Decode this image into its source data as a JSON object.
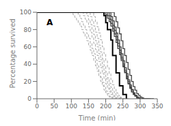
{
  "chart_data": {
    "type": "line",
    "title": "A",
    "xlabel": "Time (min)",
    "ylabel": "Percentage survived",
    "xlim": [
      0,
      350
    ],
    "ylim": [
      0,
      100
    ],
    "xticks": [
      0,
      50,
      100,
      150,
      200,
      250,
      300,
      350
    ],
    "yticks": [
      0,
      20,
      40,
      60,
      80,
      100
    ],
    "series": [
      {
        "type": "step",
        "line_style": "dashed",
        "color": "#aaaaaa",
        "x": [
          0,
          100,
          105,
          110,
          115,
          120,
          125,
          130,
          135,
          140,
          145,
          150,
          155,
          160,
          165,
          170,
          175,
          180,
          185,
          190,
          195,
          200,
          205,
          210,
          215,
          220,
          225,
          230,
          235,
          240
        ],
        "values": [
          100,
          100,
          97,
          94,
          91,
          88,
          84,
          80,
          76,
          72,
          67,
          62,
          56,
          50,
          44,
          38,
          32,
          26,
          20,
          15,
          10,
          7,
          4,
          2,
          1,
          0,
          0,
          0,
          0,
          0
        ]
      },
      {
        "type": "step",
        "line_style": "dashed",
        "color": "#aaaaaa",
        "x": [
          0,
          115,
          120,
          125,
          130,
          135,
          140,
          145,
          150,
          155,
          160,
          165,
          170,
          175,
          180,
          185,
          190,
          195,
          200,
          205,
          210,
          215,
          220,
          225,
          230,
          235,
          240,
          245
        ],
        "values": [
          100,
          100,
          97,
          93,
          89,
          85,
          80,
          75,
          70,
          64,
          58,
          52,
          45,
          38,
          31,
          25,
          19,
          14,
          9,
          6,
          3,
          2,
          1,
          0,
          0,
          0,
          0,
          0
        ]
      },
      {
        "type": "step",
        "line_style": "dashed",
        "color": "#aaaaaa",
        "x": [
          0,
          130,
          135,
          140,
          145,
          150,
          155,
          160,
          165,
          170,
          175,
          180,
          185,
          190,
          195,
          200,
          205,
          210,
          215,
          220,
          225,
          230,
          235,
          240,
          245,
          250,
          255
        ],
        "values": [
          100,
          100,
          96,
          92,
          88,
          83,
          77,
          71,
          64,
          57,
          50,
          43,
          36,
          29,
          23,
          17,
          12,
          8,
          5,
          3,
          1,
          0,
          0,
          0,
          0,
          0,
          0
        ]
      },
      {
        "type": "step",
        "line_style": "dashed",
        "color": "#aaaaaa",
        "x": [
          0,
          140,
          145,
          150,
          155,
          160,
          165,
          170,
          175,
          180,
          185,
          190,
          195,
          200,
          205,
          210,
          215,
          220,
          225,
          230,
          235,
          240,
          245,
          250,
          255,
          260
        ],
        "values": [
          100,
          100,
          96,
          91,
          86,
          80,
          74,
          67,
          60,
          52,
          45,
          37,
          30,
          23,
          17,
          12,
          8,
          5,
          3,
          1,
          0,
          0,
          0,
          0,
          0,
          0
        ]
      },
      {
        "type": "step",
        "line_style": "dashed",
        "color": "#aaaaaa",
        "x": [
          0,
          150,
          155,
          160,
          165,
          170,
          175,
          180,
          185,
          190,
          195,
          200,
          205,
          210,
          215,
          220,
          225,
          230,
          235,
          240,
          245,
          250,
          255,
          260,
          265
        ],
        "values": [
          100,
          100,
          95,
          90,
          84,
          77,
          70,
          62,
          54,
          46,
          38,
          31,
          24,
          18,
          13,
          9,
          6,
          3,
          2,
          1,
          0,
          0,
          0,
          0,
          0
        ]
      },
      {
        "type": "step",
        "line_style": "dashed",
        "color": "#aaaaaa",
        "x": [
          0,
          160,
          165,
          170,
          175,
          180,
          185,
          190,
          195,
          200,
          205,
          210,
          215,
          220,
          225,
          230,
          235,
          240,
          245,
          250,
          255,
          260,
          265,
          270
        ],
        "values": [
          100,
          100,
          95,
          89,
          83,
          76,
          68,
          60,
          52,
          44,
          36,
          29,
          22,
          16,
          11,
          7,
          4,
          2,
          1,
          0,
          0,
          0,
          0,
          0
        ]
      },
      {
        "type": "step",
        "line_style": "solid",
        "color": "#444444",
        "x": [
          0,
          195,
          200,
          205,
          210,
          215,
          220,
          225,
          230,
          235,
          240,
          245,
          250,
          255,
          260,
          265,
          270,
          275,
          280,
          285,
          290,
          295,
          300,
          305,
          310,
          315,
          320
        ],
        "values": [
          100,
          100,
          97,
          93,
          89,
          84,
          78,
          72,
          65,
          58,
          51,
          44,
          37,
          30,
          23,
          17,
          12,
          8,
          5,
          3,
          1,
          0,
          0,
          0,
          0,
          0,
          0
        ]
      },
      {
        "type": "step",
        "line_style": "solid",
        "color": "#444444",
        "x": [
          0,
          200,
          205,
          210,
          215,
          220,
          225,
          230,
          235,
          240,
          245,
          250,
          255,
          260,
          265,
          270,
          275,
          280,
          285,
          290,
          295,
          300,
          305,
          310,
          315,
          320,
          325
        ],
        "values": [
          100,
          100,
          96,
          92,
          87,
          81,
          75,
          68,
          61,
          53,
          46,
          38,
          31,
          24,
          18,
          13,
          8,
          5,
          3,
          1,
          0,
          0,
          0,
          0,
          0,
          0,
          0
        ]
      },
      {
        "type": "step",
        "line_style": "solid",
        "color": "#444444",
        "x": [
          0,
          205,
          210,
          215,
          220,
          225,
          230,
          235,
          240,
          245,
          250,
          255,
          260,
          265,
          270,
          275,
          280,
          285,
          290,
          295,
          300,
          305,
          310,
          315,
          320,
          325
        ],
        "values": [
          100,
          100,
          96,
          91,
          85,
          79,
          72,
          64,
          56,
          48,
          40,
          33,
          26,
          20,
          14,
          10,
          6,
          4,
          2,
          1,
          0,
          0,
          0,
          0,
          0,
          0
        ]
      },
      {
        "type": "step",
        "line_style": "solid",
        "color": "#444444",
        "x": [
          0,
          210,
          215,
          220,
          225,
          230,
          235,
          240,
          245,
          250,
          255,
          260,
          265,
          270,
          275,
          280,
          285,
          290,
          295,
          300,
          305,
          310,
          315,
          320,
          325,
          330
        ],
        "values": [
          100,
          100,
          95,
          90,
          83,
          76,
          68,
          60,
          52,
          44,
          36,
          29,
          22,
          16,
          11,
          7,
          4,
          2,
          1,
          0,
          0,
          0,
          0,
          0,
          0,
          0
        ]
      },
      {
        "type": "step",
        "line_style": "solid",
        "color": "#444444",
        "x": [
          0,
          220,
          225,
          230,
          235,
          240,
          245,
          250,
          255,
          260,
          265,
          270,
          275,
          280,
          285,
          290,
          295,
          300,
          305,
          310,
          315,
          320,
          325,
          330,
          335,
          340
        ],
        "values": [
          100,
          100,
          95,
          89,
          82,
          75,
          67,
          58,
          50,
          42,
          34,
          27,
          20,
          14,
          10,
          6,
          4,
          2,
          1,
          0,
          0,
          0,
          0,
          0,
          0,
          0
        ]
      },
      {
        "type": "line",
        "line_style": "solid",
        "color": "#000000",
        "x": [
          0,
          195,
          195,
          200,
          200,
          205,
          205,
          215,
          215,
          220,
          220,
          230,
          230,
          240,
          240,
          250,
          250,
          260,
          260
        ],
        "values": [
          100,
          100,
          96,
          96,
          88,
          88,
          80,
          80,
          68,
          68,
          50,
          50,
          30,
          30,
          15,
          15,
          5,
          5,
          0
        ]
      }
    ]
  }
}
